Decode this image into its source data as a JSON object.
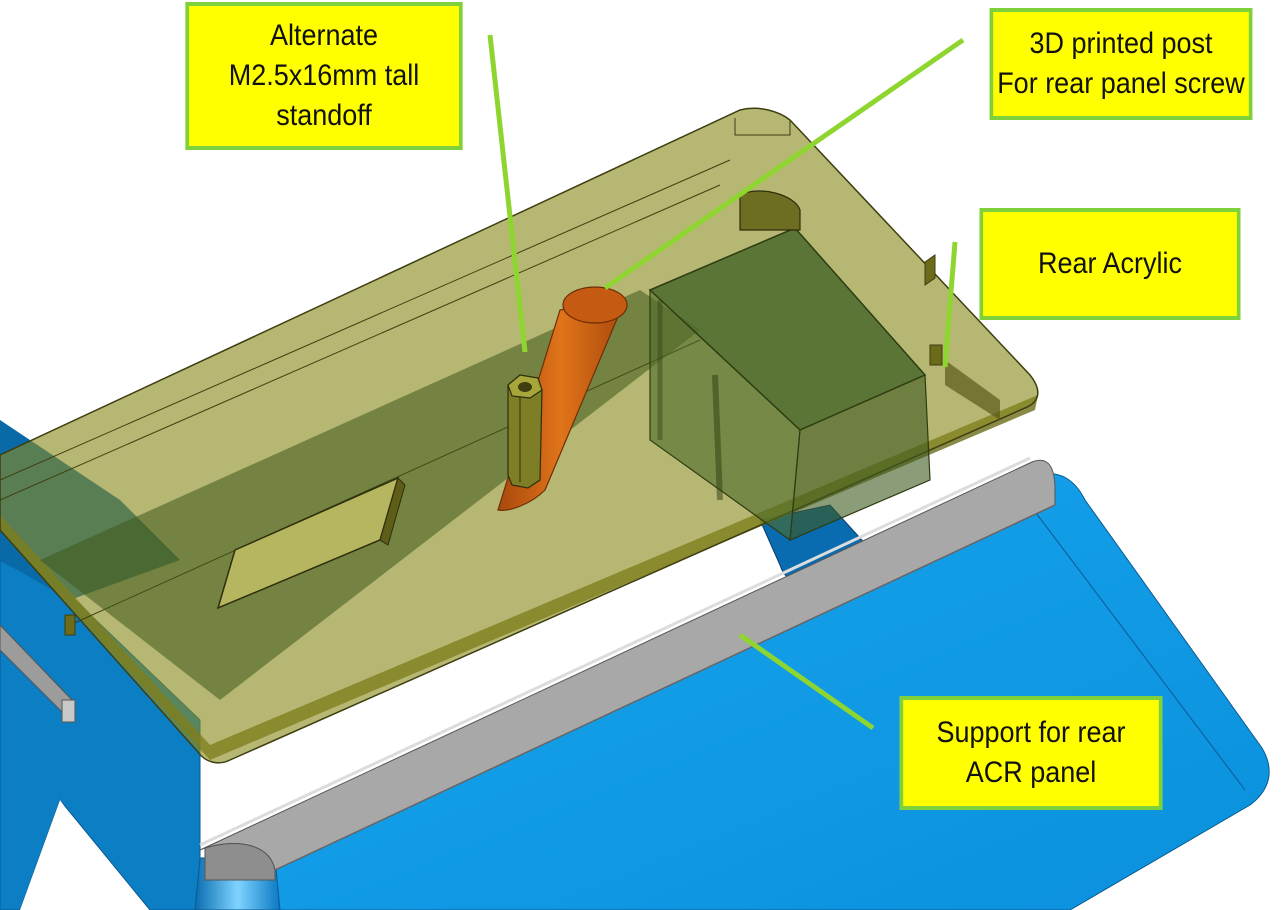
{
  "colors": {
    "callout_fill": "#ffff00",
    "callout_border": "#7fd13b",
    "leader_line": "#8ed62f",
    "blue_panel": "#0c9ae6",
    "acrylic": "#8a8a1e",
    "printed_post": "#d4650f",
    "grey_rim": "#9c9c9c"
  },
  "callouts": {
    "standoff": {
      "lines": [
        "Alternate",
        "M2.5x16mm tall",
        "standoff"
      ]
    },
    "post": {
      "lines": [
        "3D printed post",
        "For rear panel screw"
      ]
    },
    "acrylic": {
      "lines": [
        "Rear Acrylic"
      ]
    },
    "support": {
      "lines": [
        "Support for rear",
        "ACR panel"
      ]
    }
  }
}
